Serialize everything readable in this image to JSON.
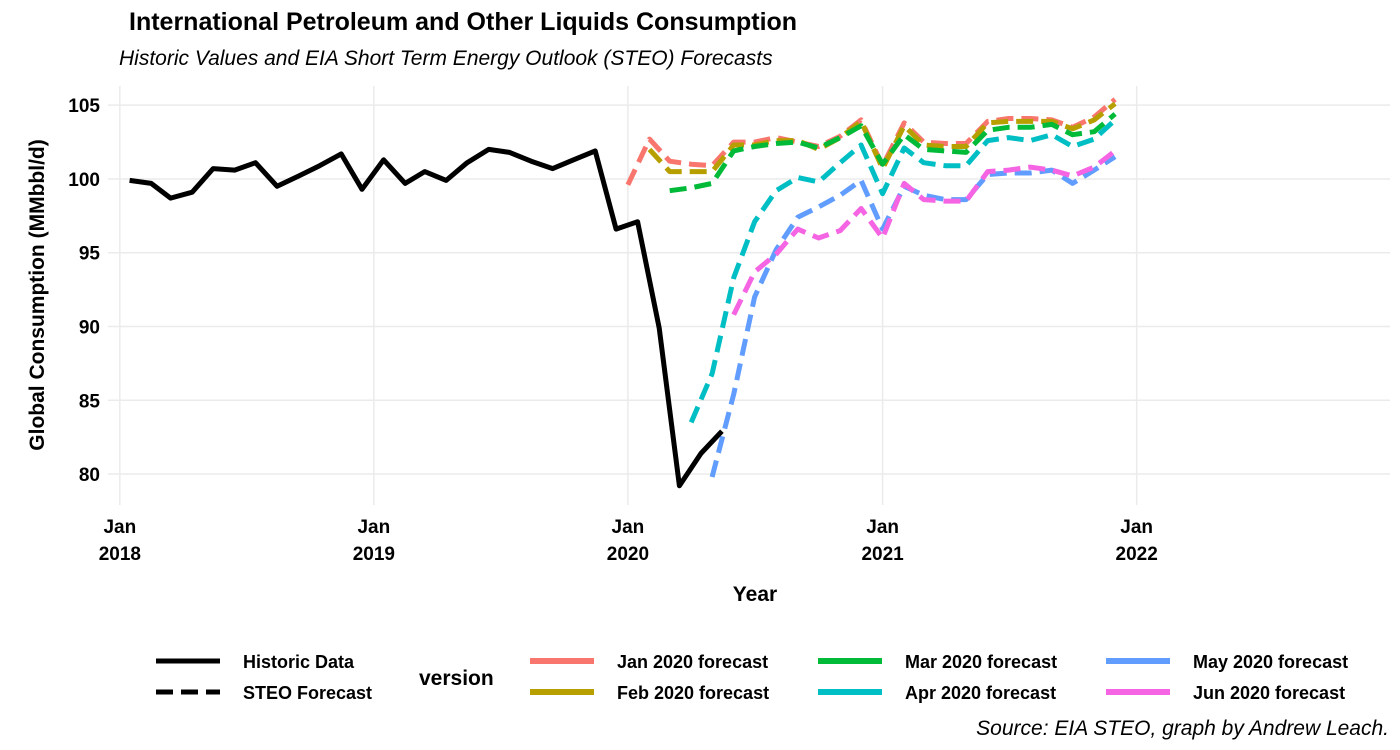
{
  "chart_data": {
    "type": "line",
    "title": "International Petroleum and Other Liquids Consumption",
    "subtitle": "Historic Values and EIA Short Term Energy Outlook (STEO) Forecasts",
    "xlabel": "Year",
    "ylabel": "Global Consumption (MMbbl/d)",
    "caption": "Source: EIA STEO, graph by Andrew Leach.",
    "xlim": [
      "2017-12-15",
      "2022-12-31"
    ],
    "ylim": [
      77.9,
      106.3
    ],
    "x_ticks": [
      {
        "value": "2018-01-01",
        "label_line1": "Jan",
        "label_line2": "2018"
      },
      {
        "value": "2019-01-01",
        "label_line1": "Jan",
        "label_line2": "2019"
      },
      {
        "value": "2020-01-01",
        "label_line1": "Jan",
        "label_line2": "2020"
      },
      {
        "value": "2021-01-01",
        "label_line1": "Jan",
        "label_line2": "2021"
      },
      {
        "value": "2022-01-01",
        "label_line1": "Jan",
        "label_line2": "2022"
      }
    ],
    "y_ticks": [
      80,
      85,
      90,
      95,
      100,
      105
    ],
    "grid": true,
    "legend_placement": "bottom",
    "linetype_legend": [
      {
        "label": "Historic Data",
        "style": "solid"
      },
      {
        "label": "STEO Forecast",
        "style": "dashed"
      }
    ],
    "color_legend_title": "version",
    "series": [
      {
        "name": "Historic Data",
        "style": "solid",
        "color": "#000000",
        "x": [
          "2018-01-15",
          "2018-02-15",
          "2018-03-15",
          "2018-04-15",
          "2018-05-15",
          "2018-06-15",
          "2018-07-15",
          "2018-08-15",
          "2018-09-15",
          "2018-10-15",
          "2018-11-15",
          "2018-12-15",
          "2019-01-15",
          "2019-02-15",
          "2019-03-15",
          "2019-04-15",
          "2019-05-15",
          "2019-06-15",
          "2019-07-15",
          "2019-08-15",
          "2019-09-15",
          "2019-10-15",
          "2019-11-15",
          "2019-12-15",
          "2020-01-15",
          "2020-02-15",
          "2020-03-15",
          "2020-04-15",
          "2020-05-15"
        ],
        "y": [
          99.9,
          99.7,
          98.7,
          99.1,
          100.7,
          100.6,
          101.1,
          99.5,
          100.2,
          100.9,
          101.7,
          99.3,
          101.3,
          99.7,
          100.5,
          99.9,
          101.1,
          102.0,
          101.8,
          101.2,
          100.7,
          101.3,
          101.9,
          96.6,
          97.1,
          89.9,
          79.2,
          81.4,
          82.9
        ]
      },
      {
        "name": "Jan 2020 forecast",
        "style": "dashed",
        "color": "#F8766D",
        "x": [
          "2020-01-01",
          "2020-02-01",
          "2020-03-01",
          "2020-04-01",
          "2020-05-01",
          "2020-06-01",
          "2020-07-01",
          "2020-08-01",
          "2020-09-01",
          "2020-10-01",
          "2020-11-01",
          "2020-12-01",
          "2021-01-01",
          "2021-02-01",
          "2021-03-01",
          "2021-04-01",
          "2021-05-01",
          "2021-06-01",
          "2021-07-01",
          "2021-08-01",
          "2021-09-01",
          "2021-10-01",
          "2021-11-01",
          "2021-12-01"
        ],
        "y": [
          99.6,
          102.7,
          101.2,
          101.0,
          100.9,
          102.5,
          102.5,
          102.8,
          102.5,
          102.2,
          102.9,
          104.0,
          100.9,
          103.8,
          102.5,
          102.4,
          102.4,
          103.9,
          104.1,
          104.1,
          104.0,
          103.5,
          104.2,
          105.4
        ]
      },
      {
        "name": "Feb 2020 forecast",
        "style": "dashed",
        "color": "#B79F00",
        "x": [
          "2020-02-01",
          "2020-03-01",
          "2020-04-01",
          "2020-05-01",
          "2020-06-01",
          "2020-07-01",
          "2020-08-01",
          "2020-09-01",
          "2020-10-01",
          "2020-11-01",
          "2020-12-01",
          "2021-01-01",
          "2021-02-01",
          "2021-03-01",
          "2021-04-01",
          "2021-05-01",
          "2021-06-01",
          "2021-07-01",
          "2021-08-01",
          "2021-09-01",
          "2021-10-01",
          "2021-11-01",
          "2021-12-01"
        ],
        "y": [
          102.0,
          100.5,
          100.5,
          100.5,
          102.3,
          102.3,
          102.6,
          102.6,
          102.0,
          102.8,
          103.9,
          100.7,
          103.6,
          102.3,
          102.2,
          102.2,
          103.8,
          103.9,
          103.9,
          103.9,
          103.4,
          104.0,
          105.1
        ]
      },
      {
        "name": "Mar 2020 forecast",
        "style": "dashed",
        "color": "#00BA38",
        "x": [
          "2020-03-01",
          "2020-04-01",
          "2020-05-01",
          "2020-06-01",
          "2020-07-01",
          "2020-08-01",
          "2020-09-01",
          "2020-10-01",
          "2020-11-01",
          "2020-12-01",
          "2021-01-01",
          "2021-02-01",
          "2021-03-01",
          "2021-04-01",
          "2021-05-01",
          "2021-06-01",
          "2021-07-01",
          "2021-08-01",
          "2021-09-01",
          "2021-10-01",
          "2021-11-01",
          "2021-12-01"
        ],
        "y": [
          99.2,
          99.4,
          99.7,
          101.9,
          102.2,
          102.4,
          102.5,
          102.1,
          102.8,
          103.6,
          101.0,
          103.0,
          102.0,
          101.9,
          101.8,
          103.3,
          103.5,
          103.5,
          103.7,
          103.0,
          103.2,
          104.4
        ]
      },
      {
        "name": "Apr 2020 forecast",
        "style": "dashed",
        "color": "#00BFC4",
        "x": [
          "2020-04-01",
          "2020-05-01",
          "2020-06-01",
          "2020-07-01",
          "2020-08-01",
          "2020-09-01",
          "2020-10-01",
          "2020-11-01",
          "2020-12-01",
          "2021-01-01",
          "2021-02-01",
          "2021-03-01",
          "2021-04-01",
          "2021-05-01",
          "2021-06-01",
          "2021-07-01",
          "2021-08-01",
          "2021-09-01",
          "2021-10-01",
          "2021-11-01",
          "2021-12-01"
        ],
        "y": [
          83.5,
          86.8,
          93.3,
          97.1,
          99.2,
          100.1,
          99.8,
          101.1,
          102.3,
          99.0,
          102.1,
          101.1,
          100.9,
          100.9,
          102.6,
          102.8,
          102.6,
          103.0,
          102.2,
          102.7,
          104.0
        ]
      },
      {
        "name": "May 2020 forecast",
        "style": "dashed",
        "color": "#619CFF",
        "x": [
          "2020-05-01",
          "2020-06-01",
          "2020-07-01",
          "2020-08-01",
          "2020-09-01",
          "2020-10-01",
          "2020-11-01",
          "2020-12-01",
          "2021-01-01",
          "2021-02-01",
          "2021-03-01",
          "2021-04-01",
          "2021-05-01",
          "2021-06-01",
          "2021-07-01",
          "2021-08-01",
          "2021-09-01",
          "2021-10-01",
          "2021-11-01",
          "2021-12-01"
        ],
        "y": [
          79.8,
          85.4,
          92.0,
          95.2,
          97.4,
          98.1,
          98.9,
          99.9,
          96.6,
          99.5,
          98.9,
          98.6,
          98.6,
          100.3,
          100.4,
          100.4,
          100.6,
          99.7,
          100.6,
          101.5
        ]
      },
      {
        "name": "Jun 2020 forecast",
        "style": "dashed",
        "color": "#F564E3",
        "x": [
          "2020-06-01",
          "2020-07-01",
          "2020-08-01",
          "2020-09-01",
          "2020-10-01",
          "2020-11-01",
          "2020-12-01",
          "2021-01-01",
          "2021-02-01",
          "2021-03-01",
          "2021-04-01",
          "2021-05-01",
          "2021-06-01",
          "2021-07-01",
          "2021-08-01",
          "2021-09-01",
          "2021-10-01",
          "2021-11-01",
          "2021-12-01"
        ],
        "y": [
          90.8,
          93.7,
          94.9,
          96.6,
          96.0,
          96.5,
          98.0,
          96.0,
          99.7,
          98.6,
          98.5,
          98.5,
          100.5,
          100.6,
          100.8,
          100.6,
          100.2,
          100.8,
          101.9
        ]
      }
    ]
  }
}
